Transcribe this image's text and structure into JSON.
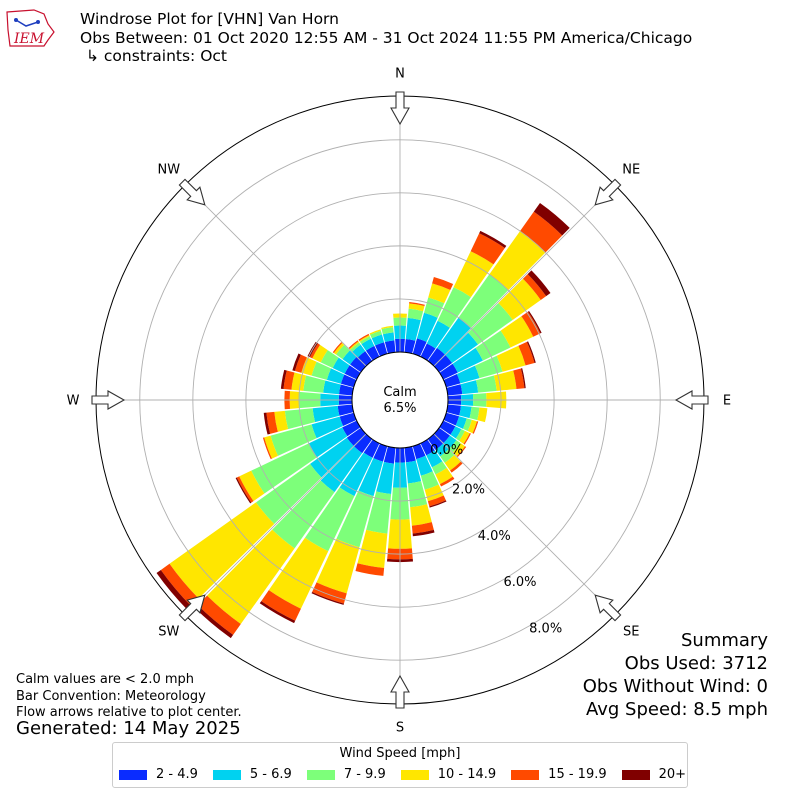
{
  "header": {
    "logo_text": "IEM",
    "title": "Windrose Plot for [VHN] Van Horn",
    "subtitle": "Obs Between: 01 Oct 2020 12:55 AM - 31 Oct 2024 11:55 PM America/Chicago",
    "constraint": "↳ constraints: Oct"
  },
  "calm": {
    "label": "Calm",
    "value": "6.5%"
  },
  "notes": {
    "calm_note": "Calm values are < 2.0 mph",
    "convention": "Bar Convention: Meteorology",
    "flow": "Flow arrows relative to plot center.",
    "generated": "Generated: 14 May 2025"
  },
  "summary": {
    "title": "Summary",
    "obs_used": "Obs Used: 3712",
    "obs_without_wind": "Obs Without Wind: 0",
    "avg_speed": "Avg Speed: 8.5 mph"
  },
  "chart_data": {
    "type": "windrose",
    "direction_labels": [
      "N",
      "NE",
      "E",
      "SE",
      "S",
      "SW",
      "W",
      "NW"
    ],
    "radial_ticks": [
      0,
      2,
      4,
      6,
      8
    ],
    "radial_tick_labels": [
      "0.0%",
      "2.0%",
      "4.0%",
      "6.0%",
      "8.0%"
    ],
    "r_max": 9.65,
    "calm_percent": 6.5,
    "legend_title": "Wind Speed [mph]",
    "bins": [
      {
        "label": "2 - 4.9",
        "color": "#0a2cff"
      },
      {
        "label": "5 - 6.9",
        "color": "#00d2f0"
      },
      {
        "label": "7 - 9.9",
        "color": "#7dff7a"
      },
      {
        "label": "10 - 14.9",
        "color": "#ffe600"
      },
      {
        "label": "15 - 19.9",
        "color": "#ff4a00"
      },
      {
        "label": "20+",
        "color": "#800000"
      }
    ],
    "directions_deg": [
      0,
      10,
      20,
      30,
      40,
      50,
      60,
      70,
      80,
      90,
      100,
      110,
      120,
      130,
      140,
      150,
      160,
      170,
      180,
      190,
      200,
      210,
      220,
      230,
      240,
      250,
      260,
      270,
      280,
      290,
      300,
      310,
      320,
      330,
      340,
      350
    ],
    "values": [
      [
        0.5,
        0.5,
        0.3,
        0.15,
        0,
        0
      ],
      [
        0.5,
        0.8,
        0.35,
        0.2,
        0.05,
        0
      ],
      [
        0.6,
        1.0,
        0.6,
        0.55,
        0.25,
        0
      ],
      [
        0.55,
        0.95,
        1.4,
        1.5,
        0.75,
        0.1
      ],
      [
        0.6,
        1.4,
        2.0,
        2.0,
        0.9,
        0.4
      ],
      [
        0.6,
        1.2,
        1.6,
        1.3,
        0.25,
        0.2
      ],
      [
        0.6,
        1.05,
        1.15,
        0.95,
        0.3,
        0.05
      ],
      [
        0.55,
        0.75,
        0.9,
        0.9,
        0.35,
        0.05
      ],
      [
        0.55,
        0.6,
        0.7,
        0.75,
        0.3,
        0.05
      ],
      [
        0.5,
        0.45,
        0.5,
        0.75,
        0,
        0
      ],
      [
        0.5,
        0.4,
        0.3,
        0.3,
        0,
        0
      ],
      [
        0.5,
        0.3,
        0.2,
        0.2,
        0.05,
        0
      ],
      [
        0.5,
        0.25,
        0.15,
        0.2,
        0.05,
        0
      ],
      [
        0.5,
        0.3,
        0.2,
        0.2,
        0.05,
        0
      ],
      [
        0.5,
        0.3,
        0.3,
        0.35,
        0.1,
        0
      ],
      [
        0.5,
        0.5,
        0.3,
        0.4,
        0.1,
        0
      ],
      [
        0.5,
        0.65,
        0.55,
        0.45,
        0.2,
        0.05
      ],
      [
        0.55,
        0.8,
        0.9,
        0.7,
        0.3,
        0.1
      ],
      [
        0.55,
        0.95,
        1.2,
        1.1,
        0.4,
        0.1
      ],
      [
        0.6,
        1.15,
        1.5,
        1.3,
        0.3,
        0
      ],
      [
        0.6,
        1.35,
        2.0,
        1.8,
        0.4,
        0.05
      ],
      [
        0.6,
        1.6,
        2.3,
        2.4,
        0.5,
        0.1
      ],
      [
        0.65,
        1.8,
        2.6,
        3.5,
        0.5,
        0.15
      ],
      [
        0.65,
        1.7,
        2.5,
        4.0,
        0.4,
        0.2
      ],
      [
        0.6,
        1.4,
        2.4,
        0.5,
        0.1,
        0.05
      ],
      [
        0.55,
        1.1,
        1.6,
        0.25,
        0.05,
        0
      ],
      [
        0.55,
        0.95,
        1.05,
        0.4,
        0.3,
        0.1
      ],
      [
        0.5,
        0.7,
        0.8,
        0.35,
        0.2,
        0
      ],
      [
        0.5,
        0.6,
        0.75,
        0.45,
        0.3,
        0.1
      ],
      [
        0.5,
        0.55,
        0.6,
        0.4,
        0.25,
        0.1
      ],
      [
        0.5,
        0.5,
        0.5,
        0.35,
        0.1,
        0.1
      ],
      [
        0.5,
        0.35,
        0.3,
        0.1,
        0.05,
        0
      ],
      [
        0.45,
        0.3,
        0.1,
        0.05,
        0.05,
        0
      ],
      [
        0.45,
        0.3,
        0.1,
        0.05,
        0.05,
        0
      ],
      [
        0.45,
        0.3,
        0.15,
        0.05,
        0,
        0
      ],
      [
        0.45,
        0.3,
        0.2,
        0.05,
        0,
        0
      ]
    ]
  }
}
